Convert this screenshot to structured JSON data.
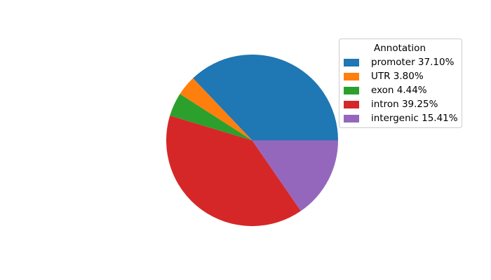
{
  "figure": {
    "background": "#ffffff"
  },
  "chart_data": {
    "type": "pie",
    "title": "",
    "legend_title": "Annotation",
    "legend_position": "upper right",
    "start_angle_deg": 0,
    "direction": "counterclockwise",
    "series": [
      {
        "label": "promoter",
        "value_pct": 37.1,
        "color": "#1f77b4",
        "legend_label": "promoter 37.10%"
      },
      {
        "label": "UTR",
        "value_pct": 3.8,
        "color": "#ff7f0e",
        "legend_label": "UTR 3.80%"
      },
      {
        "label": "exon",
        "value_pct": 4.44,
        "color": "#2ca02c",
        "legend_label": "exon 4.44%"
      },
      {
        "label": "intron",
        "value_pct": 39.25,
        "color": "#d62728",
        "legend_label": "intron 39.25%"
      },
      {
        "label": "intergenic",
        "value_pct": 15.41,
        "color": "#9467bd",
        "legend_label": "intergenic 15.41%"
      }
    ]
  }
}
